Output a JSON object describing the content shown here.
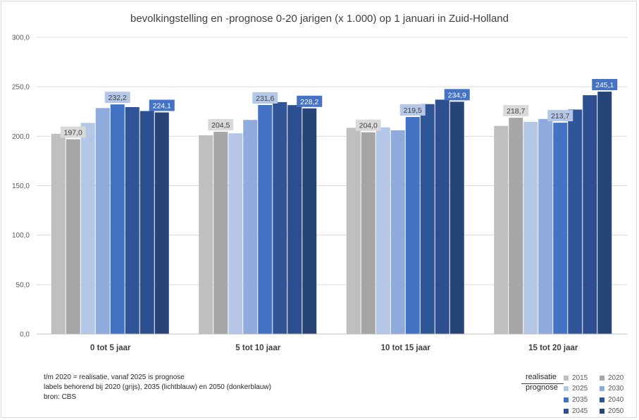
{
  "chart_data": {
    "type": "bar",
    "title": "bevolkingstelling en -prognose 0-20 jarigen (x 1.000) op 1 januari in Zuid-Holland",
    "categories": [
      "0 tot 5 jaar",
      "5 tot 10 jaar",
      "10 tot 15 jaar",
      "15 tot 20 jaar"
    ],
    "ylim": [
      0,
      300
    ],
    "yticks": [
      "0,0",
      "50,0",
      "100,0",
      "150,0",
      "200,0",
      "250,0",
      "300,0"
    ],
    "grid": true,
    "series": [
      {
        "name": "2015",
        "color": "#bfbfbf",
        "values": [
          202.5,
          201.0,
          208.5,
          210.5
        ]
      },
      {
        "name": "2020",
        "color": "#a6a6a6",
        "values": [
          197.0,
          204.5,
          204.0,
          218.7
        ]
      },
      {
        "name": "2025",
        "color": "#b4c7e7",
        "values": [
          213.5,
          203.0,
          209.0,
          214.5
        ]
      },
      {
        "name": "2030",
        "color": "#8faadc",
        "values": [
          228.5,
          216.5,
          206.0,
          217.5
        ]
      },
      {
        "name": "2035",
        "color": "#4472c4",
        "values": [
          232.2,
          231.6,
          219.5,
          213.7
        ]
      },
      {
        "name": "2040",
        "color": "#2f5597",
        "values": [
          229.5,
          234.5,
          232.5,
          227.0
        ]
      },
      {
        "name": "2045",
        "color": "#2e4f8f",
        "values": [
          225.5,
          231.5,
          237.0,
          241.5
        ]
      },
      {
        "name": "2050",
        "color": "#264478",
        "values": [
          224.1,
          228.2,
          234.9,
          245.1
        ]
      }
    ],
    "data_labels": [
      {
        "series": "2020",
        "category": 0,
        "text": "197,0"
      },
      {
        "series": "2035",
        "category": 0,
        "text": "232,2"
      },
      {
        "series": "2050",
        "category": 0,
        "text": "224,1"
      },
      {
        "series": "2020",
        "category": 1,
        "text": "204,5"
      },
      {
        "series": "2035",
        "category": 1,
        "text": "231,6"
      },
      {
        "series": "2050",
        "category": 1,
        "text": "228,2"
      },
      {
        "series": "2020",
        "category": 2,
        "text": "204,0"
      },
      {
        "series": "2035",
        "category": 2,
        "text": "219,5"
      },
      {
        "series": "2050",
        "category": 2,
        "text": "234,9"
      },
      {
        "series": "2020",
        "category": 3,
        "text": "218,7"
      },
      {
        "series": "2035",
        "category": 3,
        "text": "213,7"
      },
      {
        "series": "2050",
        "category": 3,
        "text": "245,1"
      }
    ],
    "legend": {
      "placement": "bottom-right",
      "realisatie_label": "realisatie",
      "prognose_label": "prognose"
    }
  },
  "notes": [
    "t/m 2020 = realisatie, vanaf 2025 is prognose",
    "labels behorend bij 2020 (grijs), 2035 (lichtblauw) en 2050 (donkerblauw)",
    "bron: CBS"
  ]
}
